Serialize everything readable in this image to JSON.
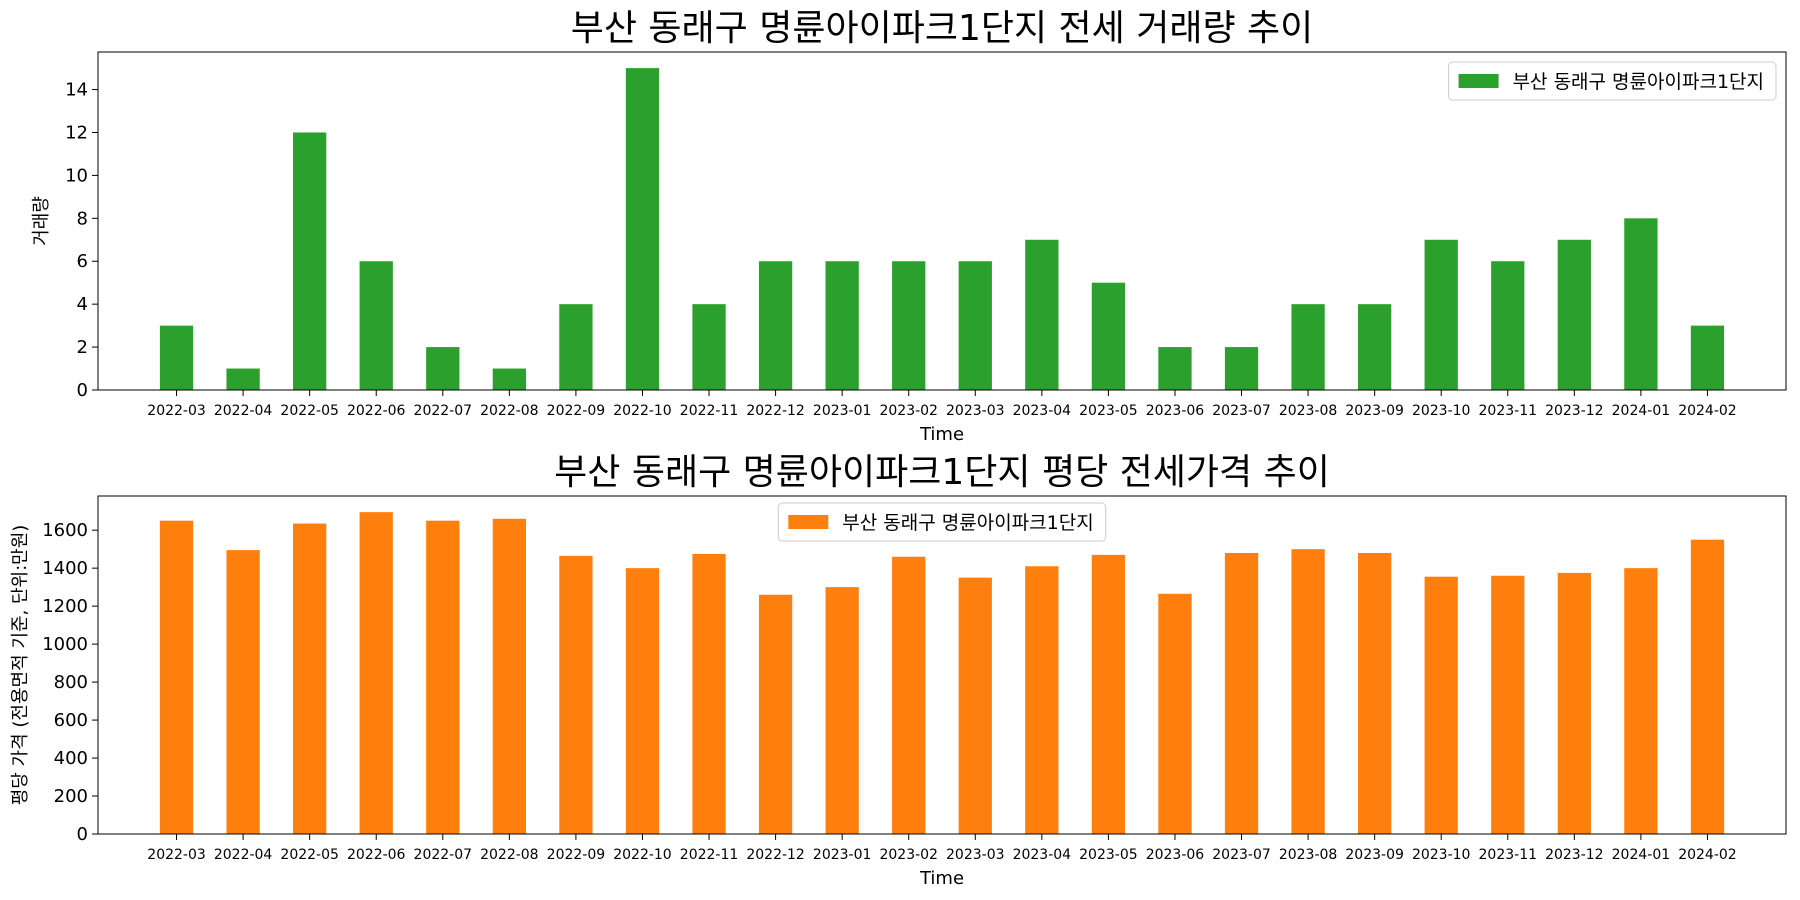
{
  "chart_data": [
    {
      "type": "bar",
      "title": "부산 동래구 명륜아이파크1단지 전세 거래량 추이",
      "xlabel": "Time",
      "ylabel": "거래량",
      "categories": [
        "2022-03",
        "2022-04",
        "2022-05",
        "2022-06",
        "2022-07",
        "2022-08",
        "2022-09",
        "2022-10",
        "2022-11",
        "2022-12",
        "2023-01",
        "2023-02",
        "2023-03",
        "2023-04",
        "2023-05",
        "2023-06",
        "2023-07",
        "2023-08",
        "2023-09",
        "2023-10",
        "2023-11",
        "2023-12",
        "2024-01",
        "2024-02"
      ],
      "series": [
        {
          "name": "부산 동래구 명륜아이파크1단지",
          "color": "#2ca02c",
          "values": [
            3,
            1,
            12,
            6,
            2,
            1,
            4,
            15,
            4,
            6,
            6,
            6,
            6,
            7,
            5,
            2,
            2,
            4,
            4,
            7,
            6,
            7,
            8,
            3
          ]
        }
      ],
      "ylim": [
        0,
        15.75
      ],
      "yticks": [
        0,
        2,
        4,
        6,
        8,
        10,
        12,
        14
      ],
      "grid": false,
      "legend": "top-right"
    },
    {
      "type": "bar",
      "title": "부산 동래구 명륜아이파크1단지 평당 전세가격 추이",
      "xlabel": "Time",
      "ylabel": "평당 가격 (전용면적 기준, 단위:만원)",
      "categories": [
        "2022-03",
        "2022-04",
        "2022-05",
        "2022-06",
        "2022-07",
        "2022-08",
        "2022-09",
        "2022-10",
        "2022-11",
        "2022-12",
        "2023-01",
        "2023-02",
        "2023-03",
        "2023-04",
        "2023-05",
        "2023-06",
        "2023-07",
        "2023-08",
        "2023-09",
        "2023-10",
        "2023-11",
        "2023-12",
        "2024-01",
        "2024-02"
      ],
      "series": [
        {
          "name": "부산 동래구 명륜아이파크1단지",
          "color": "#ff7f0e",
          "values": [
            1650,
            1495,
            1635,
            1695,
            1650,
            1660,
            1465,
            1400,
            1475,
            1260,
            1300,
            1460,
            1350,
            1410,
            1470,
            1265,
            1480,
            1500,
            1480,
            1355,
            1360,
            1375,
            1400,
            1550
          ]
        }
      ],
      "ylim": [
        0,
        1780
      ],
      "yticks": [
        0,
        200,
        400,
        600,
        800,
        1000,
        1200,
        1400,
        1600
      ],
      "grid": false,
      "legend": "top-center"
    }
  ]
}
